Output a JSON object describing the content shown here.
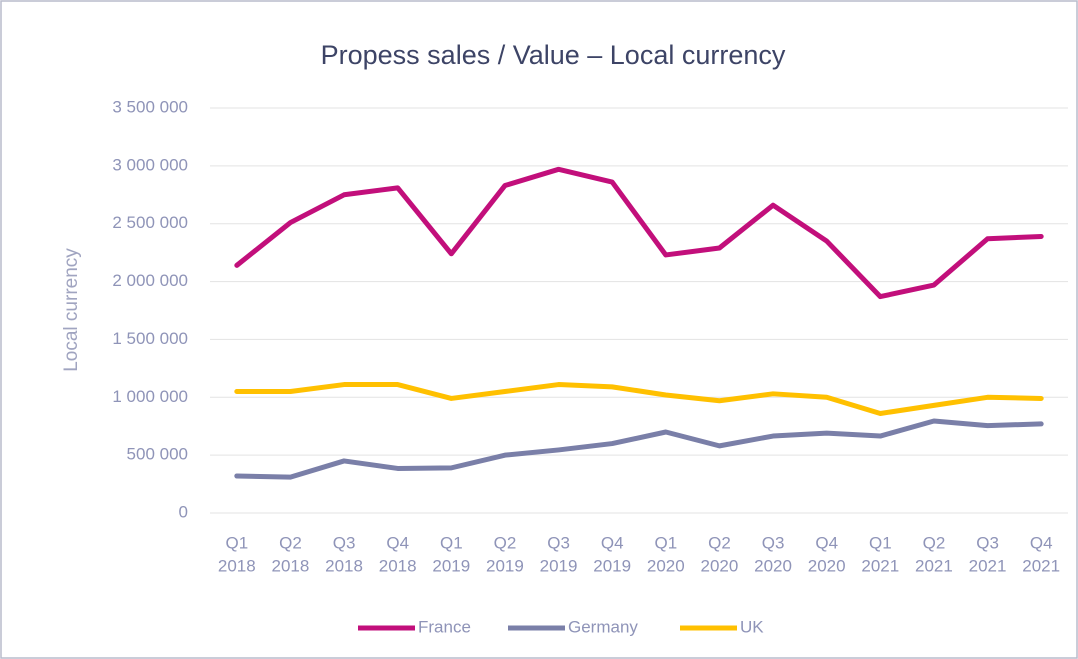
{
  "chart_data": {
    "type": "line",
    "title": "Propess sales  / Value – Local currency",
    "y_label": "Local currency",
    "categories": [
      [
        "Q1",
        "2018"
      ],
      [
        "Q2",
        "2018"
      ],
      [
        "Q3",
        "2018"
      ],
      [
        "Q4",
        "2018"
      ],
      [
        "Q1",
        "2019"
      ],
      [
        "Q2",
        "2019"
      ],
      [
        "Q3",
        "2019"
      ],
      [
        "Q4",
        "2019"
      ],
      [
        "Q1",
        "2020"
      ],
      [
        "Q2",
        "2020"
      ],
      [
        "Q3",
        "2020"
      ],
      [
        "Q4",
        "2020"
      ],
      [
        "Q1",
        "2021"
      ],
      [
        "Q2",
        "2021"
      ],
      [
        "Q3",
        "2021"
      ],
      [
        "Q4",
        "2021"
      ]
    ],
    "series": [
      {
        "name": "France",
        "color": "#c20f7b",
        "values": [
          2140000,
          2510000,
          2750000,
          2810000,
          2240000,
          2830000,
          2970000,
          2860000,
          2230000,
          2290000,
          2660000,
          2350000,
          1870000,
          1970000,
          2370000,
          2390000
        ]
      },
      {
        "name": "Germany",
        "color": "#7a7fa8",
        "values": [
          320000,
          310000,
          450000,
          385000,
          390000,
          500000,
          545000,
          600000,
          700000,
          580000,
          665000,
          690000,
          665000,
          795000,
          755000,
          770000
        ]
      },
      {
        "name": "UK",
        "color": "#ffc000",
        "values": [
          1050000,
          1050000,
          1110000,
          1110000,
          990000,
          1050000,
          1110000,
          1090000,
          1020000,
          970000,
          1030000,
          1000000,
          860000,
          930000,
          1000000,
          990000
        ]
      }
    ],
    "ylim": [
      0,
      3500000
    ],
    "yticks": [
      0,
      {
        "value": 500000,
        "label": "500 000"
      },
      {
        "value": 1000000,
        "label": "1 000 000"
      },
      {
        "value": 1500000,
        "label": "1 500 000"
      },
      {
        "value": 2000000,
        "label": "2 000 000"
      },
      {
        "value": 2500000,
        "label": "2 500 000"
      },
      {
        "value": 3000000,
        "label": "3 000 000"
      },
      {
        "value": 3500000,
        "label": "3 500 000"
      }
    ],
    "grid": true,
    "legend": "bottom"
  }
}
